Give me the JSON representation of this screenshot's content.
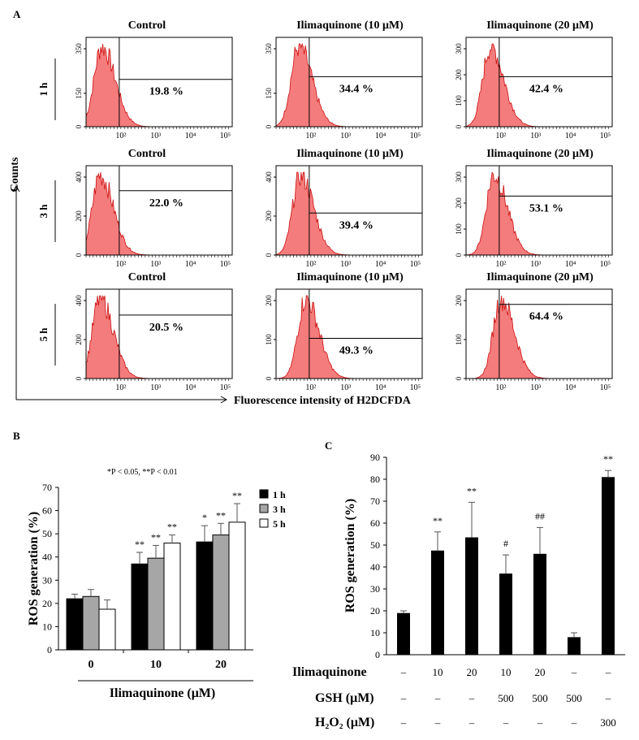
{
  "panel_letters": {
    "a": "A",
    "b": "B",
    "c": "C"
  },
  "panel_a": {
    "y_axis_title": "Counts",
    "x_axis_title": "Fluorescence intensity of H2DCFDA",
    "x_tick_labels": [
      "10²",
      "10³",
      "10⁴",
      "10⁵"
    ],
    "rows": [
      {
        "label": "1 h",
        "histograms": [
          {
            "title": "Control",
            "percent": "19.8 %",
            "yticks": [
              "0",
              "150",
              "350"
            ],
            "gate_level": 0.53,
            "peak_log": 1.45
          },
          {
            "title": "Ilimaquinone (10 μM)",
            "percent": "34.4 %",
            "yticks": [
              "0",
              "150",
              "350"
            ],
            "gate_level": 0.56,
            "peak_log": 1.65
          },
          {
            "title": "Ilimaquinone (20 μM)",
            "percent": "42.4 %",
            "yticks": [
              "0",
              "100",
              "200",
              "300"
            ],
            "gate_level": 0.56,
            "peak_log": 1.7
          }
        ]
      },
      {
        "label": "3 h",
        "histograms": [
          {
            "title": "Control",
            "percent": "22.0 %",
            "yticks": [
              "0",
              "200",
              "400"
            ],
            "gate_level": 0.72,
            "peak_log": 1.4
          },
          {
            "title": "Ilimaquinone (10 μM)",
            "percent": "39.4 %",
            "yticks": [
              "0",
              "200",
              "400"
            ],
            "gate_level": 0.47,
            "peak_log": 1.7
          },
          {
            "title": "Ilimaquinone (20 μM)",
            "percent": "53.1 %",
            "yticks": [
              "0",
              "100",
              "200",
              "300"
            ],
            "gate_level": 0.66,
            "peak_log": 1.8
          }
        ]
      },
      {
        "label": "5 h",
        "histograms": [
          {
            "title": "Control",
            "percent": "20.5 %",
            "yticks": [
              "0",
              "200",
              "400"
            ],
            "gate_level": 0.71,
            "peak_log": 1.4
          },
          {
            "title": "Ilimaquinone (10 μM)",
            "percent": "49.3 %",
            "yticks": [
              "0",
              "100",
              "200"
            ],
            "gate_level": 0.45,
            "peak_log": 1.85
          },
          {
            "title": "Ilimaquinone (20 μM)",
            "percent": "64.4 %",
            "yticks": [
              "0",
              "100",
              "200"
            ],
            "gate_level": 0.83,
            "peak_log": 2.0
          }
        ]
      }
    ]
  },
  "chart_data": [
    {
      "type": "bar",
      "panel": "B",
      "title": "",
      "note": "*P < 0.05, **P < 0.01",
      "xlabel": "Ilimaquinone (μM)",
      "ylabel": "ROS generation (%)",
      "categories": [
        "0",
        "10",
        "20"
      ],
      "ylim": [
        0,
        70
      ],
      "yticks": [
        0,
        10,
        20,
        30,
        40,
        50,
        60,
        70
      ],
      "series": [
        {
          "name": "1 h",
          "color": "#000000",
          "values": [
            22,
            37,
            46.5
          ],
          "errors": [
            2,
            5,
            7
          ],
          "sig": [
            "",
            "**",
            "*"
          ]
        },
        {
          "name": "3 h",
          "color": "#a6a6a6",
          "values": [
            23,
            39.5,
            49.5
          ],
          "errors": [
            3,
            5.5,
            5
          ],
          "sig": [
            "",
            "**",
            "**"
          ]
        },
        {
          "name": "5 h",
          "color": "#ffffff",
          "values": [
            17.5,
            46,
            55
          ],
          "errors": [
            4,
            3.5,
            8
          ],
          "sig": [
            "",
            "**",
            "**"
          ]
        }
      ],
      "legend_position": "top-right"
    },
    {
      "type": "bar",
      "panel": "C",
      "title": "",
      "xlabel": "",
      "ylabel": "ROS generation (%)",
      "ylim": [
        0,
        90
      ],
      "yticks": [
        0,
        10,
        20,
        30,
        40,
        50,
        60,
        70,
        80,
        90
      ],
      "values": [
        19,
        47.5,
        53.5,
        37,
        46,
        8,
        81
      ],
      "errors": [
        1,
        8.5,
        16,
        8.5,
        12,
        2,
        3
      ],
      "sig": [
        "",
        "**",
        "**",
        "#",
        "##",
        "",
        "**"
      ],
      "color": "#000000",
      "conditions": [
        {
          "label": "Ilimaquinone",
          "values": [
            "–",
            "10",
            "20",
            "10",
            "20",
            "–",
            "–"
          ]
        },
        {
          "label": "GSH (μM)",
          "values": [
            "–",
            "–",
            "–",
            "500",
            "500",
            "500",
            "–"
          ]
        },
        {
          "label": "H₂O₂ (μM)",
          "values": [
            "–",
            "–",
            "–",
            "–",
            "–",
            "–",
            "300"
          ]
        }
      ]
    }
  ]
}
